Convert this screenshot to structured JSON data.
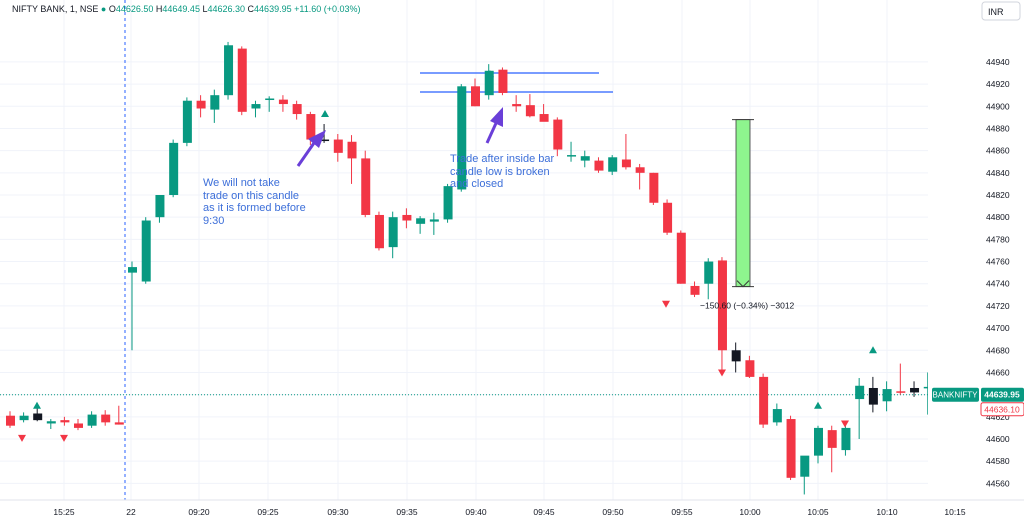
{
  "header": {
    "symbol": "NIFTY BANK, 1, NSE",
    "o_label": "O",
    "o": "44626.50",
    "h_label": "H",
    "h": "44649.45",
    "l_label": "L",
    "l": "44626.30",
    "c_label": "C",
    "c": "44639.95",
    "change": "+11.60 (+0.03%)"
  },
  "currency": "INR",
  "colors": {
    "up": "#089981",
    "down": "#f23645",
    "annotation": "#3d6fd9",
    "arrow": "#6a3fd8",
    "measure_fill": "#8ef58e",
    "hline": "#2962ff"
  },
  "annotations": {
    "note1": [
      "We will not take",
      "trade on this candle",
      "as it is formed before",
      "9:30"
    ],
    "note2": [
      "Trade after inside bar",
      "candle low is broken",
      "and closed"
    ]
  },
  "measure": {
    "label": "−150.60 (−0.34%) −3012",
    "from": 44888.0,
    "to": 44737.4
  },
  "tags": {
    "name": "BANKNIFTY",
    "last": "44639.95",
    "second": "44636.10"
  },
  "chart_data": {
    "type": "candlestick",
    "ylim": [
      44545,
      44985
    ],
    "yticks": [
      44560,
      44580,
      44600,
      44620,
      44640,
      44660,
      44680,
      44700,
      44720,
      44740,
      44760,
      44780,
      44800,
      44820,
      44840,
      44860,
      44880,
      44900,
      44920,
      44940
    ],
    "xticks": [
      "15:25",
      "22",
      "09:20",
      "09:25",
      "09:30",
      "09:35",
      "09:40",
      "09:45",
      "09:50",
      "09:55",
      "10:00",
      "10:05",
      "10:10",
      "10:15"
    ],
    "ohlc_day1": [
      [
        44621,
        44625,
        44610,
        44612
      ],
      [
        44617,
        44624,
        44615,
        44621
      ],
      [
        44623,
        44628,
        44616,
        44617
      ],
      [
        44614,
        44618,
        44609,
        44616
      ],
      [
        44617,
        44620,
        44612,
        44615
      ],
      [
        44614,
        44618,
        44608,
        44610
      ],
      [
        44612,
        44625,
        44610,
        44622
      ],
      [
        44622,
        44626,
        44612,
        44615
      ],
      [
        44615,
        44630,
        44613,
        44613
      ]
    ],
    "ohlc_day2": [
      [
        44750,
        44760,
        44680,
        44755
      ],
      [
        44742,
        44800,
        44740,
        44797
      ],
      [
        44800,
        44820,
        44795,
        44820
      ],
      [
        44820,
        44870,
        44818,
        44867
      ],
      [
        44867,
        44908,
        44864,
        44905
      ],
      [
        44905,
        44910,
        44890,
        44898
      ],
      [
        44897,
        44915,
        44885,
        44910
      ],
      [
        44910,
        44958,
        44906,
        44955
      ],
      [
        44952,
        44954,
        44892,
        44895
      ],
      [
        44898,
        44905,
        44890,
        44902
      ],
      [
        44906,
        44909,
        44895,
        44907
      ],
      [
        44906,
        44910,
        44895,
        44902
      ],
      [
        44902,
        44905,
        44888,
        44893
      ],
      [
        44893,
        44895,
        44865,
        44870
      ],
      [
        44869,
        44884,
        44867,
        44870
      ],
      [
        44870,
        44875,
        44850,
        44858
      ],
      [
        44868,
        44874,
        44830,
        44853
      ],
      [
        44853,
        44860,
        44800,
        44802
      ],
      [
        44802,
        44805,
        44770,
        44772
      ],
      [
        44773,
        44805,
        44763,
        44800
      ],
      [
        44802,
        44808,
        44790,
        44797
      ],
      [
        44794,
        44801,
        44785,
        44799
      ],
      [
        44796,
        44804,
        44784,
        44798
      ],
      [
        44798,
        44830,
        44795,
        44828
      ],
      [
        44825,
        44920,
        44823,
        44918
      ],
      [
        44918,
        44925,
        44900,
        44900
      ],
      [
        44910,
        44938,
        44906,
        44932
      ],
      [
        44933,
        44935,
        44910,
        44912
      ],
      [
        44902,
        44910,
        44895,
        44900
      ],
      [
        44901,
        44911,
        44890,
        44891
      ],
      [
        44893,
        44902,
        44888,
        44886
      ],
      [
        44888,
        44890,
        44855,
        44861
      ],
      [
        44855,
        44868,
        44850,
        44856
      ],
      [
        44851,
        44860,
        44845,
        44855
      ],
      [
        44851,
        44854,
        44840,
        44842
      ],
      [
        44841,
        44856,
        44838,
        44854
      ],
      [
        44852,
        44875,
        44843,
        44845
      ],
      [
        44845,
        44848,
        44825,
        44840
      ],
      [
        44840,
        44840,
        44811,
        44813
      ],
      [
        44813,
        44816,
        44784,
        44786
      ],
      [
        44786,
        44788,
        44740,
        44740
      ],
      [
        44738,
        44742,
        44728,
        44730
      ],
      [
        44740,
        44763,
        44726,
        44760
      ],
      [
        44761,
        44764,
        44660,
        44680
      ],
      [
        44680,
        44687,
        44660,
        44670
      ],
      [
        44671,
        44675,
        44655,
        44656
      ],
      [
        44656,
        44659,
        44610,
        44613
      ],
      [
        44615,
        44632,
        44612,
        44627
      ],
      [
        44618,
        44621,
        44563,
        44565
      ],
      [
        44566,
        44570,
        44550,
        44585
      ],
      [
        44585,
        44612,
        44578,
        44610
      ],
      [
        44608,
        44612,
        44570,
        44592
      ],
      [
        44590,
        44612,
        44585,
        44610
      ],
      [
        44636,
        44655,
        44600,
        44648
      ],
      [
        44646,
        44656,
        44624,
        44631
      ],
      [
        44634,
        44652,
        44625,
        44645
      ],
      [
        44643,
        44668,
        44640,
        44642
      ],
      [
        44642,
        44652,
        44638,
        44646
      ],
      [
        44646,
        44660,
        44622,
        44647
      ],
      [
        44645,
        44663,
        44640,
        44655
      ],
      [
        44654,
        44679,
        44650,
        44674
      ],
      [
        44674,
        44678,
        44638,
        44670
      ],
      [
        44670,
        44676,
        44640,
        44642
      ],
      [
        44644,
        44672,
        44640,
        44671
      ],
      [
        44655,
        44673,
        44630,
        44638
      ]
    ]
  }
}
